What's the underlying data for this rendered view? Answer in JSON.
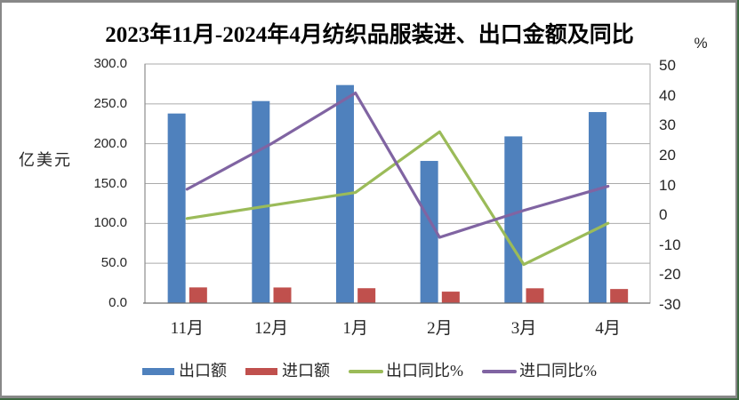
{
  "chart_data": {
    "type": "combo-bar-line",
    "title": "2023年11月-2024年4月纺织品服装进、出口金额及同比",
    "categories": [
      "11月",
      "12月",
      "1月",
      "2月",
      "3月",
      "4月"
    ],
    "left_axis": {
      "unit": "亿美元",
      "min": 0,
      "max": 300,
      "step": 50,
      "ticks": [
        "300.0",
        "250.0",
        "200.0",
        "150.0",
        "100.0",
        "50.0",
        "0.0"
      ]
    },
    "right_axis": {
      "unit": "%",
      "min": -30,
      "max": 50,
      "step": 10,
      "ticks": [
        "50",
        "40",
        "30",
        "20",
        "10",
        "0",
        "-10",
        "-20",
        "-30"
      ]
    },
    "series": [
      {
        "key": "export-amount",
        "name": "出口额",
        "type": "bar",
        "axis": "left",
        "color": "#4F81BD",
        "values": [
          237.9,
          253.5,
          273.6,
          178.4,
          209.2,
          239.7
        ]
      },
      {
        "key": "import-amount",
        "name": "进口额",
        "type": "bar",
        "axis": "left",
        "color": "#C0504D",
        "values": [
          19.7,
          19.6,
          18.7,
          14.4,
          18.6,
          17.7
        ]
      },
      {
        "key": "export-yoy",
        "name": "出口同比%",
        "type": "line",
        "axis": "right",
        "color": "#9BBB59",
        "values": [
          -1.7,
          2.7,
          7.0,
          27.3,
          -17.1,
          -3.3
        ]
      },
      {
        "key": "import-yoy",
        "name": "进口同比%",
        "type": "line",
        "axis": "right",
        "color": "#8064A2",
        "values": [
          8.1,
          23.3,
          40.3,
          -8.0,
          1.0,
          9.1
        ]
      }
    ],
    "grid": true,
    "legend_position": "bottom"
  },
  "colors": {
    "background": "#FFFFFF",
    "frame_border": "#888888",
    "frame_edge": "#3E6A42",
    "gridline": "#ABABAB",
    "plot_border": "#ABABAB",
    "left_axis_line": "#8C8C8C",
    "bottom_axis_line": "#6E6E6E",
    "tick_text": "#262626",
    "title_text": "#000000"
  }
}
